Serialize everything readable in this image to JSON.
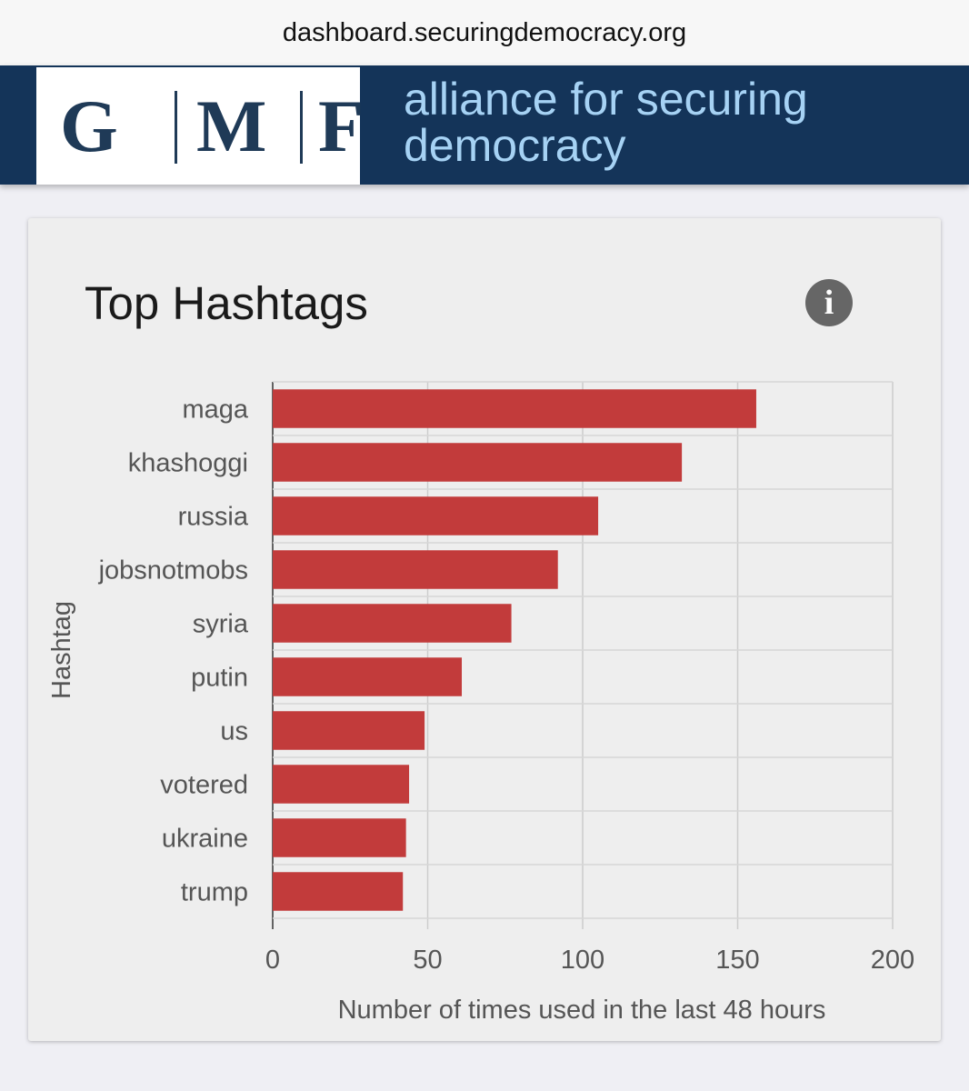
{
  "browser": {
    "url": "dashboard.securingdemocracy.org"
  },
  "header": {
    "logo_letters": [
      "G",
      "M",
      "F"
    ],
    "tagline_line1": "alliance for securing",
    "tagline_line2": "democracy"
  },
  "card": {
    "title": "Top Hashtags",
    "info_icon": "info-icon",
    "info_glyph": "i"
  },
  "colors": {
    "bar": "#c23b3b",
    "banner": "#143459",
    "tagline": "#a6d2f4"
  },
  "chart_data": {
    "type": "bar",
    "orientation": "horizontal",
    "title": "Top Hashtags",
    "categories": [
      "maga",
      "khashoggi",
      "russia",
      "jobsnotmobs",
      "syria",
      "putin",
      "us",
      "votered",
      "ukraine",
      "trump"
    ],
    "values": [
      156,
      132,
      105,
      92,
      77,
      61,
      49,
      44,
      43,
      42
    ],
    "xlabel": "Number of times used in the last 48 hours",
    "ylabel": "Hashtag",
    "xlim": [
      0,
      200
    ],
    "xticks": [
      0,
      50,
      100,
      150,
      200
    ],
    "grid": true,
    "legend": "none"
  }
}
